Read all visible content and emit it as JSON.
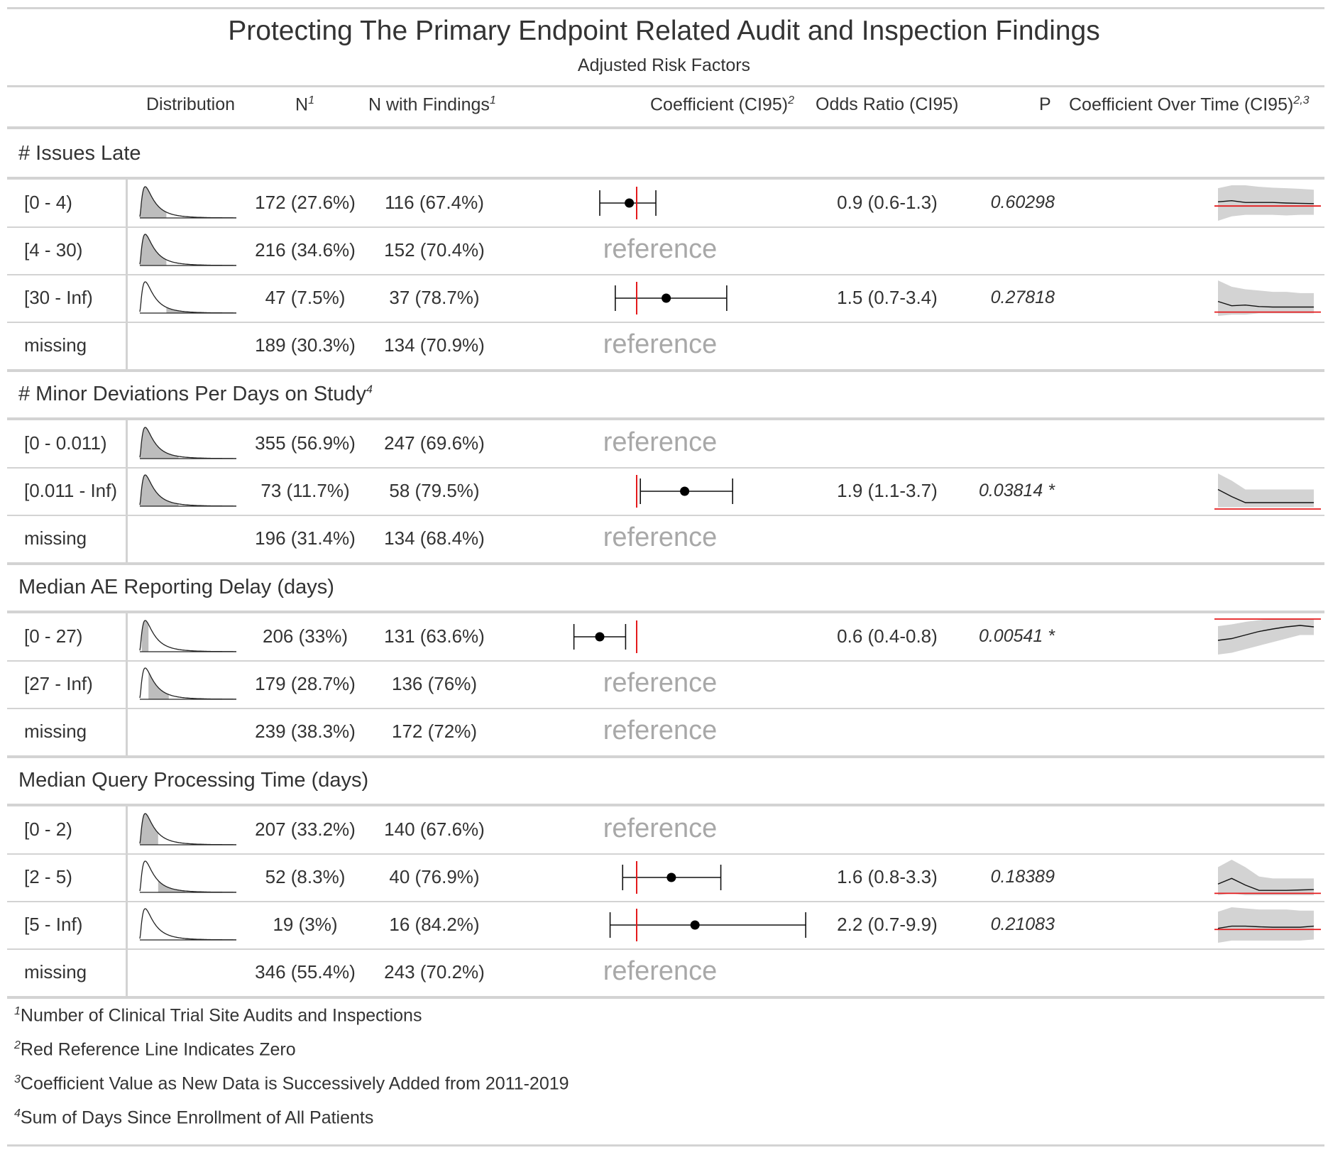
{
  "title": "Protecting The Primary Endpoint Related Audit and Inspection Findings",
  "subtitle": "Adjusted Risk Factors",
  "headers": {
    "distribution": "Distribution",
    "n": "N",
    "n_sup": "1",
    "n_findings": "N with Findings",
    "n_findings_sup": "1",
    "coefficient": "Coefficient (CI95)",
    "coefficient_sup": "2",
    "odds_ratio": "Odds Ratio (CI95)",
    "p": "P",
    "coef_time": "Coefficient Over Time (CI95)",
    "coef_time_sup": "2,3"
  },
  "colors": {
    "reference_line": "#e41a1c",
    "reference_text": "#a8a8a8",
    "band": "#d3d3d3",
    "rule": "#d3d3d3"
  },
  "groups": [
    {
      "label": "# Issues Late",
      "sup": "",
      "rows": [
        {
          "label": "[0 - 4)",
          "n": "172 (27.6%)",
          "n_findings": "116 (67.4%)",
          "reference": false,
          "coef": -0.1,
          "ci": [
            -0.5,
            0.26
          ],
          "odds_ratio": "0.9 (0.6-1.3)",
          "p": "0.60298",
          "dist": [
            0,
            0.276
          ],
          "trend": [
            0.14,
            0.18,
            0.12,
            0.12,
            0.12,
            0.1,
            0.09,
            0.08
          ],
          "trend_low": [
            -0.5,
            -0.35,
            -0.3,
            -0.3,
            -0.3,
            -0.32,
            -0.3,
            -0.3
          ],
          "trend_high": [
            0.6,
            0.7,
            0.7,
            0.65,
            0.62,
            0.6,
            0.58,
            0.55
          ]
        },
        {
          "label": "[4 - 30)",
          "n": "216 (34.6%)",
          "n_findings": "152 (70.4%)",
          "reference": true,
          "reference_label": "reference",
          "dist": [
            0,
            0.276
          ]
        },
        {
          "label": "[30 - Inf)",
          "n": "47 (7.5%)",
          "n_findings": "37 (78.7%)",
          "reference": true,
          "reference_label": "",
          "coef": 0.4,
          "ci": [
            -0.29,
            1.22
          ],
          "odds_ratio": "1.5 (0.7-3.4)",
          "p": "0.27818",
          "dist": [
            0.276,
            0.58
          ],
          "trend": [
            0.42,
            0.25,
            0.28,
            0.22,
            0.2,
            0.2,
            0.2,
            0.2
          ],
          "trend_low": [
            -0.15,
            -0.1,
            -0.1,
            -0.05,
            -0.05,
            -0.05,
            -0.05,
            -0.05
          ],
          "trend_high": [
            1.25,
            1.0,
            0.9,
            0.85,
            0.8,
            0.8,
            0.75,
            0.75
          ]
        },
        {
          "label": "missing",
          "n": "189 (30.3%)",
          "n_findings": "134 (70.9%)",
          "reference": true,
          "reference_label": "reference",
          "dist": null
        }
      ]
    },
    {
      "label": "# Minor Deviations Per Days on Study",
      "sup": "4",
      "rows": [
        {
          "label": "[0 - 0.011)",
          "n": "355 (56.9%)",
          "n_findings": "247 (69.6%)",
          "reference": true,
          "reference_label": "reference",
          "dist": [
            0,
            0.4
          ]
        },
        {
          "label": "[0.011 - Inf)",
          "n": "73 (11.7%)",
          "n_findings": "58 (79.5%)",
          "reference": false,
          "coef": 0.65,
          "ci": [
            0.05,
            1.3
          ],
          "odds_ratio": "1.9 (1.1-3.7)",
          "p": "0.03814 *",
          "dist": [
            0,
            0.4
          ],
          "trend": [
            0.55,
            0.35,
            0.18,
            0.18,
            0.18,
            0.18,
            0.18,
            0.18
          ],
          "trend_low": [
            0.05,
            0.05,
            0.05,
            0.05,
            0.05,
            0.05,
            0.05,
            0.05
          ],
          "trend_high": [
            1.0,
            0.8,
            0.55,
            0.55,
            0.55,
            0.55,
            0.55,
            0.55
          ]
        },
        {
          "label": "missing",
          "n": "196 (31.4%)",
          "n_findings": "134 (68.4%)",
          "reference": true,
          "reference_label": "reference",
          "dist": null
        }
      ]
    },
    {
      "label": "Median AE Reporting Delay (days)",
      "sup": "",
      "rows": [
        {
          "label": "[0 - 27)",
          "n": "206 (33%)",
          "n_findings": "131 (63.6%)",
          "reference": false,
          "coef": -0.5,
          "ci": [
            -0.85,
            -0.15
          ],
          "odds_ratio": "0.6 (0.4-0.8)",
          "p": "0.00541 *",
          "dist": [
            0.02,
            0.09
          ],
          "trend": [
            -0.6,
            -0.55,
            -0.45,
            -0.35,
            -0.28,
            -0.22,
            -0.18,
            -0.22
          ],
          "trend_low": [
            -1.0,
            -0.95,
            -0.85,
            -0.75,
            -0.65,
            -0.55,
            -0.45,
            -0.45
          ],
          "trend_high": [
            -0.2,
            -0.15,
            -0.08,
            -0.03,
            0.0,
            0.0,
            0.0,
            0.0
          ]
        },
        {
          "label": "[27 - Inf)",
          "n": "179 (28.7%)",
          "n_findings": "136 (76%)",
          "reference": true,
          "reference_label": "reference",
          "dist": [
            0.09,
            0.3
          ]
        },
        {
          "label": "missing",
          "n": "239 (38.3%)",
          "n_findings": "172 (72%)",
          "reference": true,
          "reference_label": "reference",
          "dist": null
        }
      ]
    },
    {
      "label": "Median Query Processing Time (days)",
      "sup": "",
      "rows": [
        {
          "label": "[0 - 2)",
          "n": "207 (33.2%)",
          "n_findings": "140 (67.6%)",
          "reference": true,
          "reference_label": "reference",
          "dist": [
            0,
            0.19
          ]
        },
        {
          "label": "[2 - 5)",
          "n": "52 (8.3%)",
          "n_findings": "40 (76.9%)",
          "reference": false,
          "coef": 0.47,
          "ci": [
            -0.19,
            1.14
          ],
          "odds_ratio": "1.6 (0.8-3.3)",
          "p": "0.18389",
          "dist": [
            0.19,
            0.47
          ],
          "trend": [
            0.25,
            0.4,
            0.22,
            0.08,
            0.08,
            0.08,
            0.09,
            0.1
          ],
          "trend_low": [
            -0.05,
            0.0,
            -0.05,
            -0.05,
            -0.05,
            -0.05,
            -0.05,
            -0.05
          ],
          "trend_high": [
            0.7,
            0.9,
            0.7,
            0.45,
            0.4,
            0.4,
            0.4,
            0.4
          ]
        },
        {
          "label": "[5 - Inf)",
          "n": "19 (3%)",
          "n_findings": "16 (84.2%)",
          "reference": false,
          "coef": 0.79,
          "ci": [
            -0.36,
            2.29
          ],
          "odds_ratio": "2.2 (0.7-9.9)",
          "p": "0.21083",
          "dist": [
            0.47,
            1.0
          ],
          "trend": [
            0.05,
            0.15,
            0.15,
            0.12,
            0.1,
            0.1,
            0.1,
            0.15
          ],
          "trend_low": [
            -0.6,
            -0.5,
            -0.5,
            -0.5,
            -0.5,
            -0.5,
            -0.5,
            -0.45
          ],
          "trend_high": [
            0.8,
            1.0,
            0.95,
            0.9,
            0.9,
            0.9,
            0.85,
            0.85
          ]
        },
        {
          "label": "missing",
          "n": "346 (55.4%)",
          "n_findings": "243 (70.2%)",
          "reference": true,
          "reference_label": "reference",
          "dist": null
        }
      ]
    }
  ],
  "footnotes": [
    {
      "mark": "1",
      "text": "Number of Clinical Trial Site Audits and Inspections"
    },
    {
      "mark": "2",
      "text": "Red Reference Line Indicates Zero"
    },
    {
      "mark": "3",
      "text": "Coefficient Value as New Data is Successively Added from 2011-2019"
    },
    {
      "mark": "4",
      "text": "Sum of Days Since Enrollment of All Patients"
    }
  ]
}
